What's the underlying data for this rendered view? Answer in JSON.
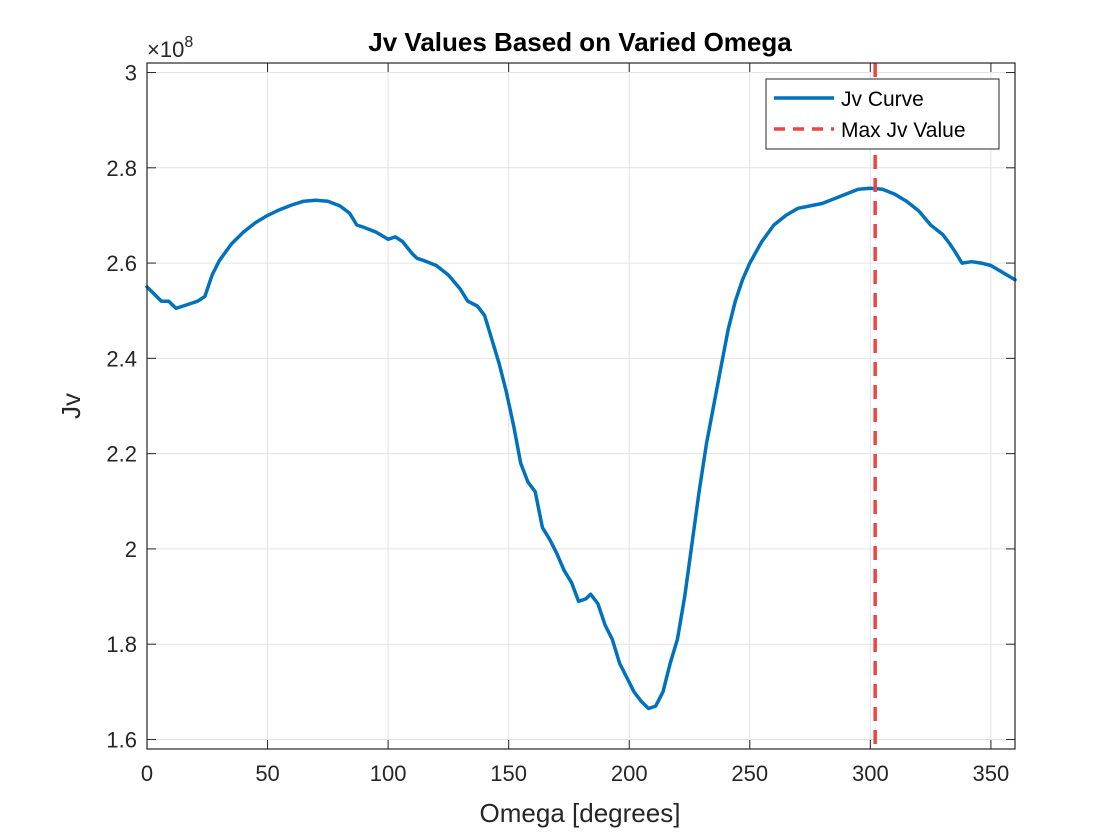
{
  "chart_data": {
    "type": "line",
    "title": "Jv Values Based on Varied Omega",
    "xlabel": "Omega [degrees]",
    "ylabel": "Jv",
    "y_exponent_prefix": "×10",
    "y_exponent": "8",
    "xlim": [
      0,
      360
    ],
    "ylim": [
      1.58,
      3.02
    ],
    "xticks": [
      0,
      50,
      100,
      150,
      200,
      250,
      300,
      350
    ],
    "xtick_labels": [
      "0",
      "50",
      "100",
      "150",
      "200",
      "250",
      "300",
      "350"
    ],
    "yticks": [
      1.6,
      1.8,
      2.0,
      2.2,
      2.4,
      2.6,
      2.8,
      3.0
    ],
    "ytick_labels": [
      "1.6",
      "1.8",
      "2",
      "2.2",
      "2.4",
      "2.6",
      "2.8",
      "3"
    ],
    "grid": true,
    "legend_position": "top-right",
    "series": [
      {
        "name": "Jv Curve",
        "color": "#0072BD",
        "style": "solid",
        "x": [
          0,
          3,
          6,
          9,
          12,
          15,
          18,
          21,
          24,
          27,
          30,
          35,
          40,
          45,
          50,
          55,
          60,
          65,
          70,
          75,
          80,
          84,
          87,
          90,
          95,
          100,
          103,
          106,
          110,
          112,
          115,
          120,
          125,
          130,
          133,
          137,
          140,
          143,
          146,
          149,
          152,
          155,
          158,
          161,
          164,
          167,
          170,
          173,
          176,
          179,
          182,
          184,
          187,
          190,
          193,
          196,
          199,
          202,
          205,
          208,
          211,
          214,
          217,
          220,
          223,
          226,
          229,
          232,
          235,
          238,
          241,
          244,
          247,
          250,
          255,
          260,
          265,
          270,
          275,
          280,
          285,
          290,
          295,
          300,
          305,
          310,
          315,
          320,
          325,
          330,
          333,
          335,
          338,
          342,
          346,
          350,
          355,
          360
        ],
        "values": [
          2.55,
          2.535,
          2.52,
          2.52,
          2.505,
          2.51,
          2.515,
          2.52,
          2.53,
          2.575,
          2.605,
          2.64,
          2.665,
          2.685,
          2.7,
          2.712,
          2.722,
          2.73,
          2.732,
          2.73,
          2.72,
          2.705,
          2.68,
          2.675,
          2.665,
          2.65,
          2.655,
          2.645,
          2.62,
          2.61,
          2.605,
          2.595,
          2.575,
          2.545,
          2.52,
          2.51,
          2.49,
          2.44,
          2.39,
          2.33,
          2.26,
          2.18,
          2.14,
          2.12,
          2.045,
          2.02,
          1.99,
          1.955,
          1.93,
          1.89,
          1.895,
          1.905,
          1.885,
          1.84,
          1.81,
          1.76,
          1.73,
          1.7,
          1.68,
          1.665,
          1.67,
          1.7,
          1.76,
          1.81,
          1.9,
          2.01,
          2.12,
          2.22,
          2.3,
          2.38,
          2.46,
          2.52,
          2.565,
          2.6,
          2.645,
          2.68,
          2.7,
          2.715,
          2.72,
          2.725,
          2.735,
          2.745,
          2.755,
          2.757,
          2.755,
          2.745,
          2.73,
          2.71,
          2.68,
          2.66,
          2.64,
          2.625,
          2.6,
          2.603,
          2.6,
          2.595,
          2.58,
          2.565
        ]
      },
      {
        "name": "Max Jv Value",
        "color": "#EE4444",
        "style": "dashed",
        "vertical_line_x": 302
      }
    ]
  }
}
